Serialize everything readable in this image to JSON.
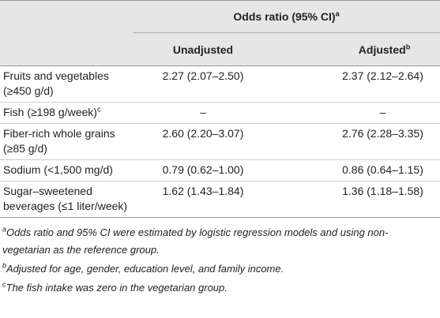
{
  "table": {
    "header": {
      "group": "Odds ratio (95% CI)",
      "group_note": "a",
      "columns": [
        {
          "label": "Unadjusted"
        },
        {
          "label": "Adjusted",
          "note": "b"
        }
      ]
    },
    "rows": [
      {
        "label": "Fruits and vegetables (≥450 g/d)",
        "values": [
          "2.27 (2.07–2.50)",
          "2.37 (2.12–2.64)"
        ]
      },
      {
        "label": "Fish (≥198 g/week)",
        "note": "c",
        "values": [
          "–",
          "–"
        ]
      },
      {
        "label": "Fiber-rich whole grains (≥85 g/d)",
        "values": [
          "2.60 (2.20–3.07)",
          "2.76 (2.28–3.35)"
        ]
      },
      {
        "label": "Sodium (<1,500 mg/d)",
        "values": [
          "0.79 (0.62–1.00)",
          "0.86 (0.64–1.15)"
        ]
      },
      {
        "label": "Sugar–sweetened beverages (≤1 liter/week)",
        "values": [
          "1.62 (1.43–1.84)",
          "1.36 (1.18–1.58)"
        ]
      }
    ],
    "footnotes": [
      {
        "marker": "a",
        "text": "Odds ratio and 95% CI were estimated by logistic regression models and using non-vegetarian as the reference group."
      },
      {
        "marker": "b",
        "text": "Adjusted for age, gender, education level, and family income."
      },
      {
        "marker": "c",
        "text": "The fish intake was zero in the vegetarian group."
      }
    ]
  }
}
